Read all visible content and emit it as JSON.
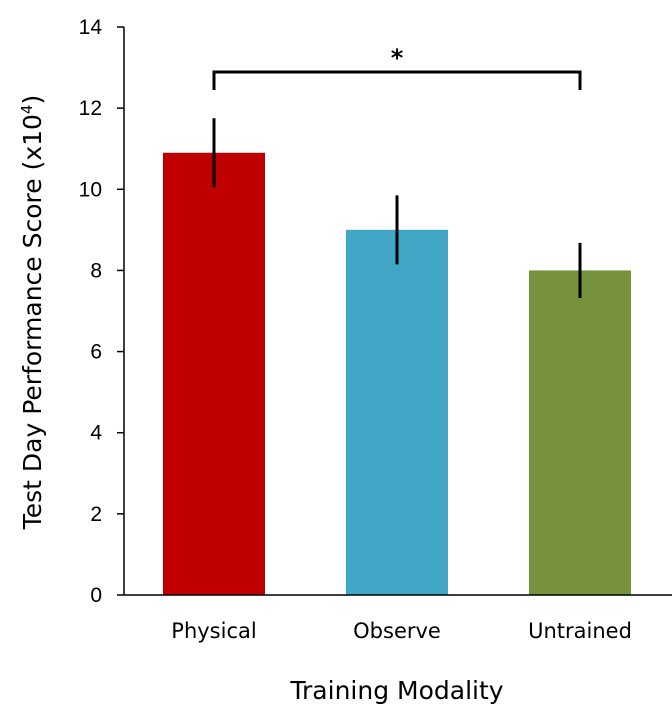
{
  "chart_data": {
    "type": "bar",
    "categories": [
      "Physical",
      "Observe",
      "Untrained"
    ],
    "values": [
      10.9,
      9.0,
      8.0
    ],
    "error": [
      0.85,
      0.85,
      0.68
    ],
    "colors": [
      "#C00000",
      "#41A6C5",
      "#76923C"
    ],
    "ylim": [
      0,
      14
    ],
    "yticks": [
      "0",
      "2",
      "4",
      "6",
      "8",
      "10",
      "12",
      "14"
    ],
    "xlabel": "Training Modality",
    "ylabel": {
      "text": "Test Day Performance Score (x10",
      "superscript": "4",
      "suffix": ")"
    },
    "significance": {
      "from": "Physical",
      "to": "Untrained",
      "label": "*"
    },
    "grid": false,
    "legend": "none"
  }
}
